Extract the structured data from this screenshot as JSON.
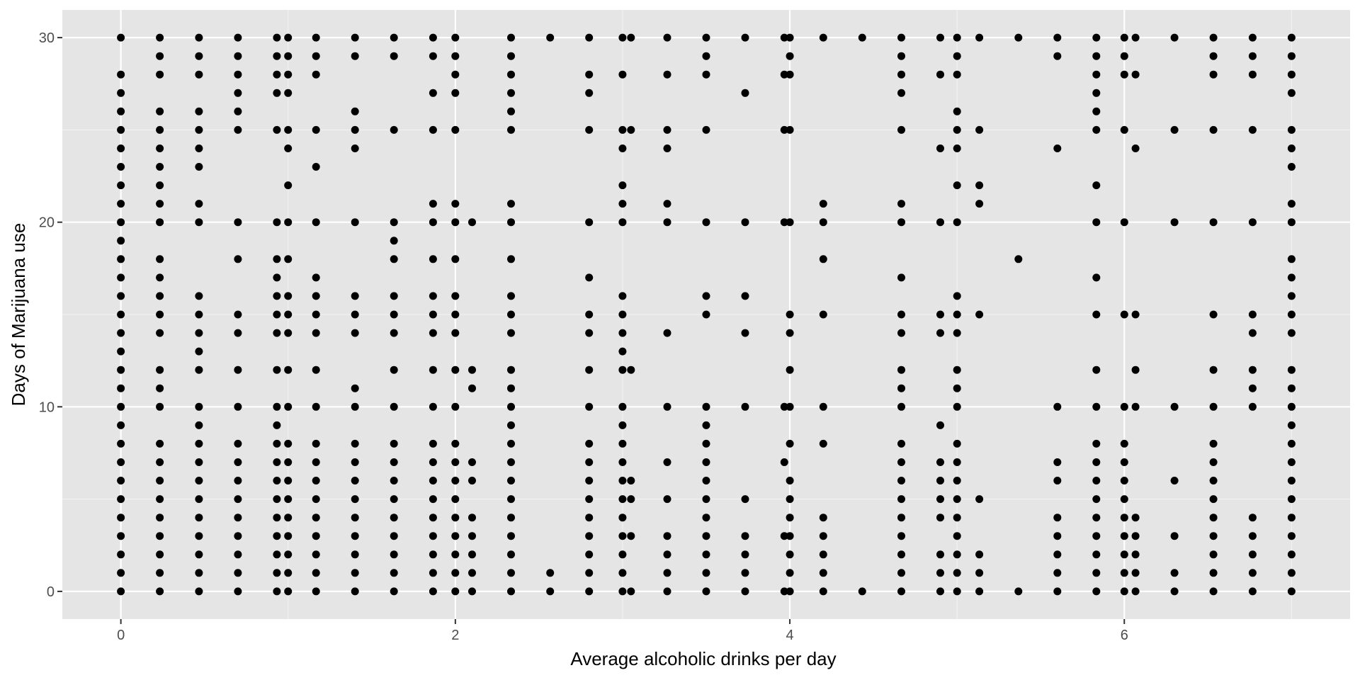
{
  "chart_data": {
    "type": "scatter",
    "title": "",
    "xlabel": "Average alcoholic drinks per day",
    "ylabel": "Days of Marijuana use",
    "xlim": [
      -0.35,
      7.35
    ],
    "ylim": [
      -1.5,
      31.5
    ],
    "x_ticks": [
      0,
      2,
      4,
      6
    ],
    "y_ticks": [
      0,
      10,
      20,
      30
    ],
    "grid": true,
    "legend": "none",
    "point_color": "#000000",
    "panel_color": "#e5e5e5",
    "columns": [
      {
        "x": 0,
        "y": [
          0,
          1,
          2,
          3,
          4,
          5,
          6,
          7,
          8,
          9,
          10,
          11,
          12,
          13,
          14,
          15,
          16,
          17,
          18,
          19,
          20,
          21,
          22,
          23,
          24,
          25,
          26,
          27,
          28,
          30
        ]
      },
      {
        "x": 0.233,
        "y": [
          0,
          1,
          2,
          3,
          4,
          5,
          6,
          7,
          8,
          10,
          11,
          12,
          14,
          15,
          16,
          17,
          18,
          20,
          21,
          22,
          23,
          24,
          25,
          26,
          28,
          29,
          30
        ]
      },
      {
        "x": 0.467,
        "y": [
          0,
          1,
          2,
          3,
          4,
          5,
          6,
          7,
          8,
          9,
          10,
          12,
          13,
          14,
          15,
          16,
          20,
          21,
          23,
          24,
          25,
          26,
          28,
          29,
          30
        ]
      },
      {
        "x": 0.7,
        "y": [
          0,
          1,
          2,
          3,
          4,
          5,
          6,
          7,
          8,
          10,
          12,
          14,
          15,
          18,
          20,
          25,
          26,
          27,
          28,
          29,
          30
        ]
      },
      {
        "x": 0.933,
        "y": [
          0,
          1,
          2,
          3,
          4,
          5,
          6,
          7,
          8,
          9,
          10,
          12,
          14,
          15,
          16,
          17,
          18,
          20,
          25,
          27,
          28,
          29,
          30
        ]
      },
      {
        "x": 1,
        "y": [
          0,
          1,
          2,
          3,
          4,
          5,
          6,
          7,
          8,
          10,
          12,
          14,
          15,
          16,
          18,
          20,
          22,
          24,
          25,
          27,
          28,
          29,
          30
        ]
      },
      {
        "x": 1.167,
        "y": [
          0,
          1,
          2,
          3,
          4,
          5,
          6,
          7,
          8,
          10,
          12,
          14,
          15,
          16,
          17,
          20,
          23,
          25,
          28,
          29,
          30
        ]
      },
      {
        "x": 1.4,
        "y": [
          0,
          1,
          2,
          3,
          4,
          5,
          6,
          7,
          8,
          10,
          11,
          14,
          15,
          16,
          20,
          24,
          25,
          26,
          29,
          30
        ]
      },
      {
        "x": 1.633,
        "y": [
          0,
          1,
          2,
          3,
          4,
          5,
          6,
          7,
          8,
          10,
          12,
          14,
          15,
          16,
          18,
          19,
          20,
          25,
          29,
          30
        ]
      },
      {
        "x": 1.867,
        "y": [
          0,
          1,
          2,
          3,
          4,
          5,
          6,
          7,
          8,
          10,
          12,
          14,
          15,
          16,
          18,
          20,
          21,
          25,
          27,
          29,
          30
        ]
      },
      {
        "x": 2,
        "y": [
          0,
          1,
          2,
          3,
          4,
          5,
          6,
          7,
          8,
          10,
          12,
          14,
          15,
          16,
          18,
          20,
          21,
          25,
          27,
          28,
          29,
          30
        ]
      },
      {
        "x": 2.1,
        "y": [
          0,
          1,
          2,
          3,
          4,
          6,
          7,
          11,
          12,
          20
        ]
      },
      {
        "x": 2.333,
        "y": [
          0,
          1,
          2,
          3,
          4,
          5,
          6,
          7,
          8,
          9,
          10,
          11,
          12,
          14,
          15,
          16,
          18,
          20,
          21,
          25,
          26,
          27,
          28,
          29,
          30
        ]
      },
      {
        "x": 2.567,
        "y": [
          0,
          1,
          30
        ]
      },
      {
        "x": 2.8,
        "y": [
          0,
          1,
          2,
          3,
          4,
          5,
          6,
          7,
          8,
          10,
          12,
          14,
          15,
          17,
          20,
          25,
          27,
          28,
          30
        ]
      },
      {
        "x": 3,
        "y": [
          0,
          1,
          2,
          3,
          4,
          5,
          6,
          7,
          8,
          9,
          10,
          12,
          13,
          14,
          15,
          16,
          20,
          21,
          22,
          24,
          25,
          28,
          30
        ]
      },
      {
        "x": 3.05,
        "y": [
          0,
          3,
          5,
          6,
          12,
          25,
          30
        ]
      },
      {
        "x": 3.267,
        "y": [
          0,
          1,
          2,
          3,
          5,
          7,
          10,
          14,
          20,
          21,
          24,
          25,
          28,
          30
        ]
      },
      {
        "x": 3.5,
        "y": [
          0,
          1,
          2,
          3,
          4,
          5,
          6,
          7,
          8,
          9,
          10,
          15,
          16,
          20,
          25,
          28,
          29,
          30
        ]
      },
      {
        "x": 3.733,
        "y": [
          0,
          1,
          2,
          3,
          5,
          10,
          14,
          16,
          20,
          27,
          30
        ]
      },
      {
        "x": 3.967,
        "y": [
          0,
          3,
          7,
          10,
          20,
          25,
          28,
          30
        ]
      },
      {
        "x": 4.0,
        "y": [
          0,
          1,
          2,
          3,
          4,
          5,
          6,
          8,
          10,
          12,
          14,
          15,
          20,
          25,
          28,
          29,
          30
        ]
      },
      {
        "x": 4.2,
        "y": [
          0,
          1,
          2,
          3,
          4,
          8,
          10,
          15,
          18,
          20,
          21,
          30
        ]
      },
      {
        "x": 4.433,
        "y": [
          0,
          30
        ]
      },
      {
        "x": 4.667,
        "y": [
          0,
          1,
          2,
          3,
          4,
          5,
          6,
          7,
          8,
          10,
          11,
          12,
          14,
          15,
          17,
          20,
          21,
          25,
          27,
          28,
          29,
          30
        ]
      },
      {
        "x": 4.9,
        "y": [
          0,
          1,
          2,
          4,
          5,
          6,
          7,
          9,
          14,
          15,
          20,
          24,
          28,
          30
        ]
      },
      {
        "x": 5,
        "y": [
          0,
          1,
          2,
          3,
          4,
          5,
          6,
          7,
          8,
          10,
          11,
          12,
          14,
          15,
          16,
          20,
          22,
          24,
          25,
          26,
          28,
          29,
          30
        ]
      },
      {
        "x": 5.133,
        "y": [
          0,
          1,
          2,
          5,
          15,
          21,
          22,
          25,
          30
        ]
      },
      {
        "x": 5.367,
        "y": [
          0,
          18,
          30
        ]
      },
      {
        "x": 5.6,
        "y": [
          0,
          1,
          2,
          3,
          4,
          6,
          7,
          10,
          24,
          29,
          30
        ]
      },
      {
        "x": 5.833,
        "y": [
          0,
          1,
          2,
          3,
          4,
          5,
          6,
          7,
          8,
          10,
          12,
          15,
          17,
          20,
          22,
          25,
          26,
          27,
          28,
          29,
          30
        ]
      },
      {
        "x": 6.0,
        "y": [
          0,
          1,
          2,
          3,
          4,
          5,
          6,
          7,
          8,
          10,
          15,
          20,
          25,
          28,
          29,
          30
        ]
      },
      {
        "x": 6.067,
        "y": [
          0,
          1,
          2,
          3,
          4,
          10,
          12,
          15,
          24,
          28,
          30
        ]
      },
      {
        "x": 6.3,
        "y": [
          0,
          1,
          3,
          6,
          10,
          20,
          25,
          30
        ]
      },
      {
        "x": 6.533,
        "y": [
          0,
          1,
          2,
          3,
          4,
          5,
          6,
          7,
          8,
          10,
          12,
          15,
          20,
          25,
          28,
          29,
          30
        ]
      },
      {
        "x": 6.767,
        "y": [
          0,
          1,
          2,
          3,
          4,
          10,
          11,
          12,
          14,
          15,
          20,
          25,
          28,
          29,
          30
        ]
      },
      {
        "x": 7,
        "y": [
          0,
          1,
          2,
          3,
          4,
          5,
          6,
          7,
          8,
          9,
          10,
          11,
          12,
          14,
          15,
          16,
          17,
          18,
          20,
          21,
          23,
          24,
          25,
          27,
          28,
          29,
          30
        ]
      }
    ]
  }
}
